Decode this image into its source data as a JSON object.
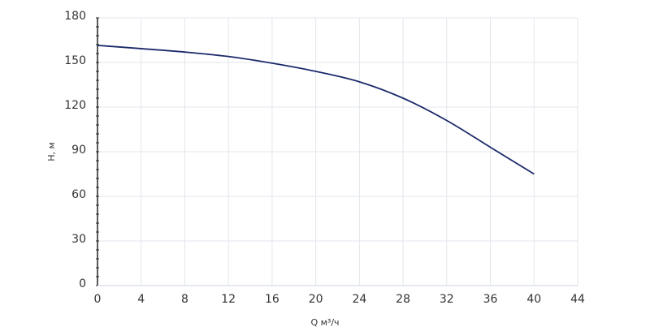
{
  "chart_data": {
    "type": "line",
    "x_label": "Q м³/ч",
    "y_label": "H, м",
    "x": [
      0,
      4,
      8,
      12,
      16,
      20,
      24,
      28,
      32,
      36,
      40
    ],
    "series": [
      {
        "name": "H",
        "color": "#1b2a6b",
        "values": [
          161.5,
          159.3,
          157,
          154,
          149.5,
          144,
          137,
          126,
          111,
          93,
          75
        ]
      }
    ],
    "xlim": [
      0,
      44
    ],
    "xticks": [
      0,
      4,
      8,
      12,
      16,
      20,
      24,
      28,
      32,
      36,
      40,
      44
    ],
    "ylim": [
      0,
      180
    ],
    "yticks": [
      0,
      30,
      60,
      90,
      120,
      150,
      180
    ],
    "grid": true
  }
}
